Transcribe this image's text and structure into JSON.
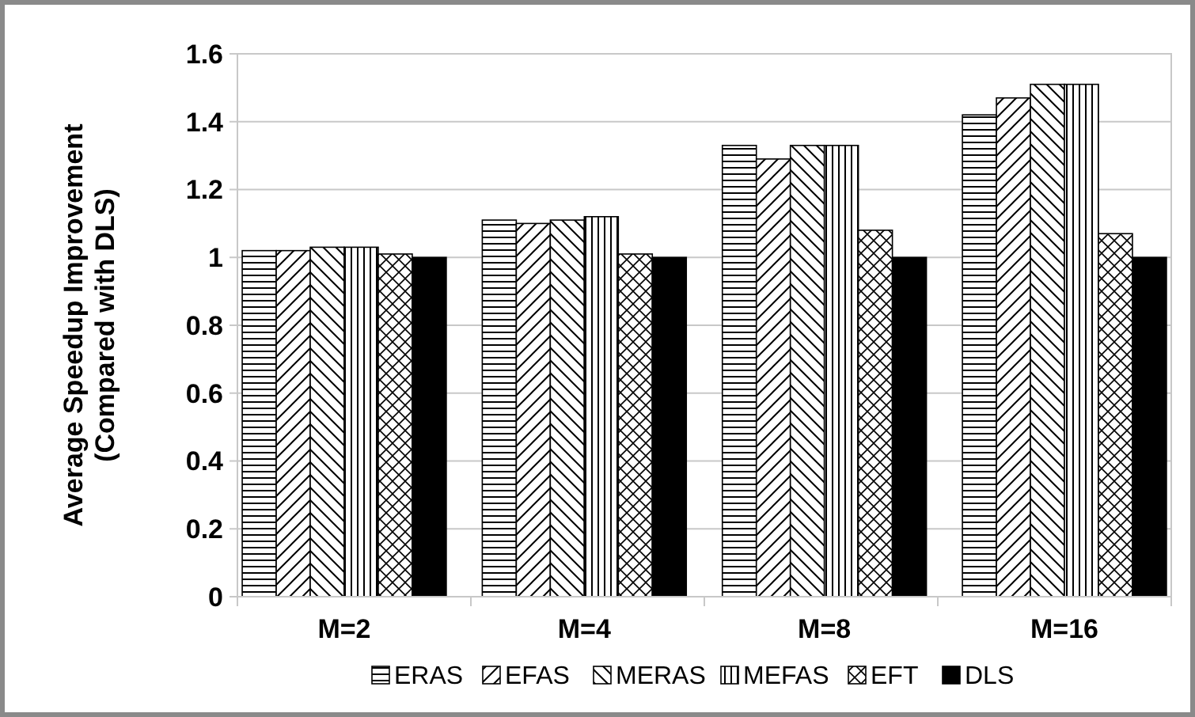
{
  "chart_data": {
    "type": "bar",
    "ylabel": "Average Speedup Improvement\n(Compared with DLS)",
    "categories": [
      "M=2",
      "M=4",
      "M=8",
      "M=16"
    ],
    "series": [
      {
        "name": "ERAS",
        "color": "#000000",
        "values": [
          1.02,
          1.11,
          1.33,
          1.42
        ]
      },
      {
        "name": "EFAS",
        "color": "#000000",
        "values": [
          1.02,
          1.1,
          1.29,
          1.47
        ]
      },
      {
        "name": "MERAS",
        "color": "#000000",
        "values": [
          1.03,
          1.11,
          1.33,
          1.51
        ]
      },
      {
        "name": "MEFAS",
        "color": "#000000",
        "values": [
          1.03,
          1.12,
          1.33,
          1.51
        ]
      },
      {
        "name": "EFT",
        "color": "#000000",
        "values": [
          1.01,
          1.01,
          1.08,
          1.07
        ]
      },
      {
        "name": "DLS",
        "color": "#000000",
        "values": [
          1,
          1,
          1,
          1
        ]
      }
    ],
    "ylim": [
      0,
      1.6
    ],
    "yticks": [
      0,
      0.2,
      0.4,
      0.6,
      0.8,
      1,
      1.2,
      1.4,
      1.6
    ],
    "grid": "y",
    "legend": "bottom"
  }
}
